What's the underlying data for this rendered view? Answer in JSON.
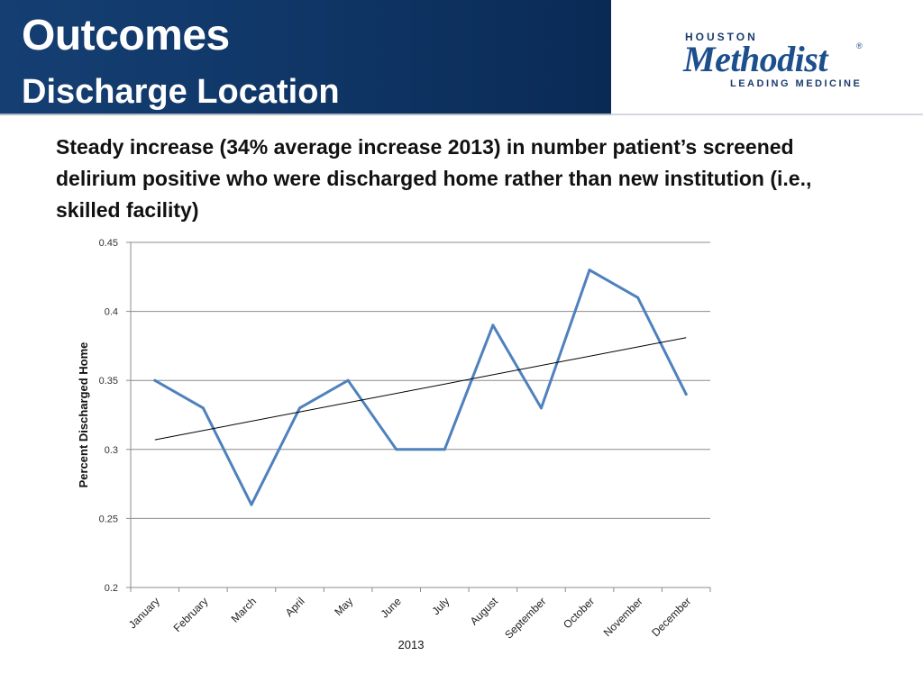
{
  "header": {
    "title": "Outcomes",
    "subtitle": "Discharge Location"
  },
  "logo": {
    "top_text": "HOUSTON",
    "name": "Methodist",
    "registered": "®",
    "tagline": "LEADING MEDICINE"
  },
  "summary": "Steady increase (34% average increase 2013) in number patient’s screened delirium positive who were discharged home rather than new institution (i.e., skilled facility)",
  "colors": {
    "header_band": "#0f3565",
    "series_line": "#4f81bd",
    "trendline": "#000000",
    "gridline": "#8c8c8c"
  },
  "chart_data": {
    "type": "line",
    "title": "",
    "xlabel": "2013",
    "ylabel": "Percent Discharged Home",
    "categories": [
      "January",
      "February",
      "March",
      "April",
      "May",
      "June",
      "July",
      "August",
      "September",
      "October",
      "November",
      "December"
    ],
    "series": [
      {
        "name": "Percent Discharged Home",
        "values": [
          0.35,
          0.33,
          0.26,
          0.33,
          0.35,
          0.3,
          0.3,
          0.39,
          0.33,
          0.43,
          0.41,
          0.34
        ]
      }
    ],
    "trendline": {
      "type": "linear",
      "start": 0.307,
      "end": 0.381
    },
    "ylim": [
      0.2,
      0.45
    ],
    "yticks": [
      0.2,
      0.25,
      0.3,
      0.35,
      0.4,
      0.45
    ],
    "ytick_labels": [
      "0.2",
      "0.25",
      "0.3",
      "0.35",
      "0.4",
      "0.45"
    ],
    "grid": true,
    "legend": "none"
  }
}
